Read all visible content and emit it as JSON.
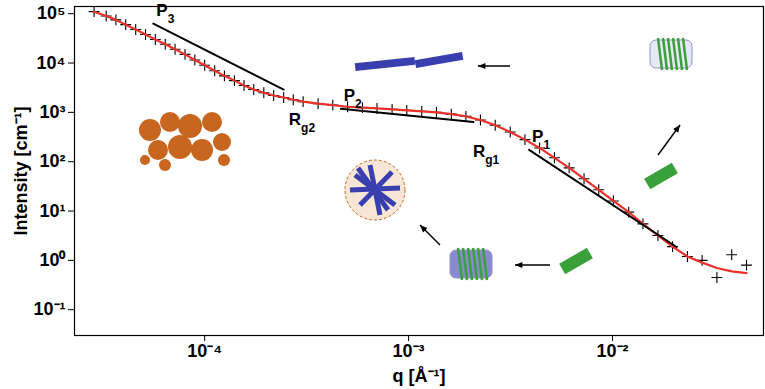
{
  "chart_data": {
    "type": "scatter",
    "log": true,
    "x_label": "q [Å⁻¹]",
    "y_label": "Intensity [cm⁻¹]",
    "xlim": [
      2.3e-05,
      0.055
    ],
    "ylim": [
      0.03,
      140000
    ],
    "xticks": [
      {
        "value": 0.0001,
        "label": "10⁻⁴"
      },
      {
        "value": 0.001,
        "label": "10⁻³"
      },
      {
        "value": 0.01,
        "label": "10⁻²"
      }
    ],
    "yticks": [
      {
        "value": 0.1,
        "label": "10⁻¹"
      },
      {
        "value": 1,
        "label": "10⁰"
      },
      {
        "value": 10,
        "label": "10¹"
      },
      {
        "value": 100,
        "label": "10²"
      },
      {
        "value": 1000,
        "label": "10³"
      },
      {
        "value": 10000,
        "label": "10⁴"
      },
      {
        "value": 100000,
        "label": "10⁵"
      }
    ],
    "x": [
      2.87e-05,
      3.29e-05,
      3.67e-05,
      4.1e-05,
      4.59e-05,
      5.13e-05,
      5.73e-05,
      6.41e-05,
      7.16e-05,
      8.01e-05,
      8.95e-05,
      0.0001,
      0.000112,
      0.000125,
      0.00014,
      0.000156,
      0.000174,
      0.000195,
      0.000218,
      0.000244,
      0.000272,
      0.000304,
      0.00036,
      0.000425,
      0.000502,
      0.000594,
      0.0007,
      0.00083,
      0.00098,
      0.00116,
      0.00137,
      0.00162,
      0.00191,
      0.00225,
      0.00266,
      0.00315,
      0.00372,
      0.00439,
      0.00519,
      0.00613,
      0.00725,
      0.00856,
      0.0101,
      0.012,
      0.0141,
      0.0167,
      0.0197,
      0.0233,
      0.0275,
      0.0325,
      0.0384,
      0.0454
    ],
    "series": [
      {
        "type": "scatter",
        "marker": "plus",
        "color": "#000000",
        "values": [
          110000,
          90000,
          75000,
          60000,
          48000,
          38000,
          30000,
          24000,
          19000,
          15000,
          11500,
          9000,
          7000,
          5500,
          4400,
          3500,
          2900,
          2500,
          2200,
          2000,
          1800,
          1650,
          1500,
          1400,
          1300,
          1250,
          1200,
          1150,
          1100,
          1050,
          1000,
          920,
          830,
          700,
          550,
          400,
          280,
          190,
          120,
          75,
          45,
          27,
          16,
          9.5,
          5.5,
          3.2,
          1.9,
          1.2,
          1.0,
          0.45,
          1.3,
          0.8
        ]
      },
      {
        "type": "line",
        "color": "#e8322b",
        "values": [
          110000,
          90000,
          75000,
          60000,
          48000,
          38000,
          30000,
          24000,
          19000,
          15000,
          11500,
          9000,
          7000,
          5500,
          4400,
          3500,
          2900,
          2500,
          2200,
          2000,
          1800,
          1650,
          1500,
          1400,
          1300,
          1250,
          1200,
          1150,
          1100,
          1050,
          1000,
          920,
          830,
          700,
          550,
          400,
          280,
          190,
          120,
          75,
          45,
          27,
          16,
          9.5,
          5.5,
          3.2,
          1.9,
          1.2,
          0.9,
          0.7,
          0.6,
          0.55
        ]
      }
    ],
    "power_laws": [
      {
        "text": "P3",
        "x": [
          5.6e-05,
          0.000244
        ],
        "y": [
          63000,
          2900
        ]
      },
      {
        "text": "P2",
        "x": [
          0.000465,
          0.00208
        ],
        "y": [
          1180,
          640
        ]
      },
      {
        "text": "P1",
        "x": [
          0.0039,
          0.0206
        ],
        "y": [
          174,
          1.87
        ]
      }
    ],
    "annotations": [
      {
        "text": "Rg2",
        "x": 0.0003,
        "y": 700
      },
      {
        "text": "Rg1",
        "x": 0.0024,
        "y": 160
      }
    ]
  }
}
